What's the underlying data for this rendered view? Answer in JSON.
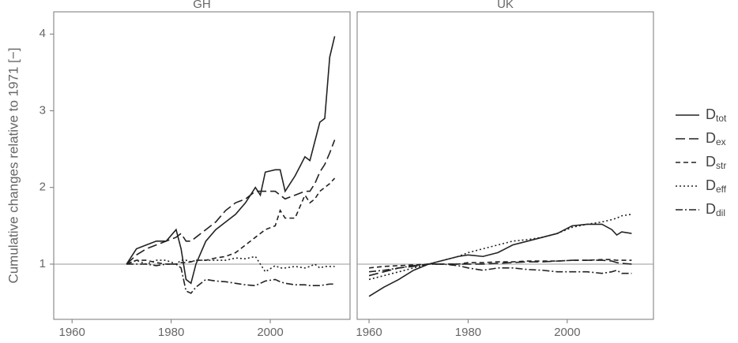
{
  "y_axis_label": "Cumulative changes relative to 1971 [−]",
  "chart_data": [
    {
      "type": "line",
      "title": "GH",
      "x": [
        1971,
        1973,
        1975,
        1977,
        1979,
        1981,
        1982,
        1983,
        1984,
        1985,
        1987,
        1989,
        1991,
        1993,
        1995,
        1997,
        1998,
        1999,
        2001,
        2002,
        2003,
        2005,
        2007,
        2008,
        2009,
        2010,
        2011,
        2012,
        2013
      ],
      "series": [
        {
          "name": "Dtot",
          "color": "#222222",
          "dash": "none",
          "values": [
            1.0,
            1.2,
            1.25,
            1.3,
            1.3,
            1.45,
            1.2,
            0.8,
            0.75,
            1.0,
            1.3,
            1.45,
            1.55,
            1.65,
            1.8,
            2.0,
            1.9,
            2.2,
            2.23,
            2.23,
            1.95,
            2.15,
            2.4,
            2.35,
            2.6,
            2.85,
            2.9,
            3.7,
            3.97
          ]
        },
        {
          "name": "Dex",
          "color": "#222222",
          "dash": "12 5",
          "values": [
            1.0,
            1.12,
            1.2,
            1.25,
            1.3,
            1.35,
            1.4,
            1.3,
            1.3,
            1.35,
            1.45,
            1.55,
            1.7,
            1.8,
            1.85,
            1.95,
            1.95,
            1.95,
            1.95,
            1.9,
            1.85,
            1.9,
            1.95,
            1.95,
            2.05,
            2.2,
            2.3,
            2.45,
            2.62
          ]
        },
        {
          "name": "Dstr",
          "color": "#222222",
          "dash": "6 4",
          "values": [
            1.0,
            1.05,
            1.05,
            1.02,
            1.0,
            1.0,
            1.02,
            1.02,
            1.03,
            1.05,
            1.05,
            1.08,
            1.1,
            1.15,
            1.25,
            1.35,
            1.4,
            1.45,
            1.5,
            1.7,
            1.6,
            1.6,
            1.9,
            1.8,
            1.85,
            1.95,
            2.0,
            2.05,
            2.12
          ]
        },
        {
          "name": "Deff",
          "color": "#222222",
          "dash": "2 3",
          "values": [
            1.0,
            1.05,
            1.0,
            1.05,
            1.05,
            1.0,
            1.05,
            1.05,
            1.03,
            1.05,
            1.05,
            1.05,
            1.05,
            1.08,
            1.07,
            1.1,
            1.0,
            0.9,
            0.98,
            0.95,
            0.95,
            0.97,
            0.95,
            0.97,
            1.0,
            0.95,
            0.97,
            0.97,
            0.97
          ]
        },
        {
          "name": "Ddil",
          "color": "#222222",
          "dash": "9 3 2 3",
          "values": [
            1.0,
            1.0,
            1.0,
            0.98,
            1.0,
            1.0,
            0.95,
            0.65,
            0.62,
            0.7,
            0.8,
            0.78,
            0.77,
            0.75,
            0.73,
            0.72,
            0.75,
            0.78,
            0.8,
            0.77,
            0.75,
            0.73,
            0.73,
            0.72,
            0.72,
            0.72,
            0.73,
            0.74,
            0.74
          ]
        }
      ],
      "xlim": [
        1956.3,
        2016.1
      ],
      "xticks": [
        1960,
        1980,
        2000
      ],
      "ylim": [
        0.28,
        4.29
      ],
      "yticks": [
        1,
        2,
        3,
        4
      ],
      "reference_line": 1
    },
    {
      "type": "line",
      "title": "UK",
      "x": [
        1960,
        1963,
        1966,
        1969,
        1972,
        1975,
        1978,
        1980,
        1983,
        1986,
        1989,
        1992,
        1995,
        1998,
        2001,
        2004,
        2007,
        2009,
        2010,
        2011,
        2013
      ],
      "series": [
        {
          "name": "Dtot",
          "color": "#222222",
          "dash": "none",
          "values": [
            0.58,
            0.7,
            0.8,
            0.92,
            1.0,
            1.05,
            1.1,
            1.12,
            1.1,
            1.15,
            1.25,
            1.3,
            1.35,
            1.4,
            1.5,
            1.52,
            1.52,
            1.45,
            1.38,
            1.42,
            1.4
          ]
        },
        {
          "name": "Dex",
          "color": "#222222",
          "dash": "12 5",
          "values": [
            0.85,
            0.9,
            0.95,
            0.97,
            1.0,
            1.0,
            1.0,
            1.0,
            1.0,
            1.01,
            1.02,
            1.03,
            1.03,
            1.04,
            1.05,
            1.05,
            1.05,
            1.04,
            1.02,
            1.01,
            1.0
          ]
        },
        {
          "name": "Dstr",
          "color": "#222222",
          "dash": "6 4",
          "values": [
            0.95,
            0.97,
            0.98,
            0.99,
            1.0,
            1.0,
            1.0,
            1.02,
            1.02,
            1.03,
            1.03,
            1.04,
            1.04,
            1.04,
            1.05,
            1.05,
            1.06,
            1.06,
            1.05,
            1.05,
            1.05
          ]
        },
        {
          "name": "Deff",
          "color": "#222222",
          "dash": "2 3",
          "values": [
            0.8,
            0.85,
            0.9,
            0.95,
            1.0,
            1.05,
            1.1,
            1.15,
            1.2,
            1.25,
            1.3,
            1.32,
            1.35,
            1.4,
            1.48,
            1.52,
            1.55,
            1.58,
            1.6,
            1.63,
            1.65
          ]
        },
        {
          "name": "Ddil",
          "color": "#222222",
          "dash": "9 3 2 3",
          "values": [
            0.9,
            0.92,
            0.95,
            0.98,
            1.0,
            1.0,
            0.98,
            0.95,
            0.92,
            0.95,
            0.95,
            0.93,
            0.92,
            0.9,
            0.9,
            0.9,
            0.88,
            0.9,
            0.92,
            0.88,
            0.88
          ]
        }
      ],
      "xlim": [
        1957.6,
        2017.4
      ],
      "xticks": [
        1960,
        1980,
        2000
      ],
      "ylim": [
        0.28,
        4.29
      ],
      "reference_line": 1
    }
  ]
}
